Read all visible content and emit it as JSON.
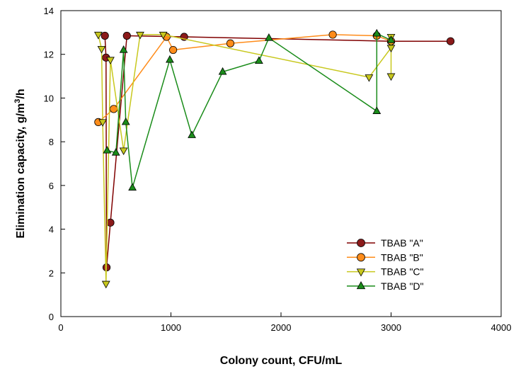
{
  "chart_data": {
    "type": "line",
    "title": "",
    "xlabel": "Colony count, CFU/mL",
    "ylabel_main": "Elimination capacity, g/m",
    "ylabel_sup": "3",
    "ylabel_tail": "/h",
    "xlim": [
      0,
      4000
    ],
    "ylim": [
      0,
      14
    ],
    "x_ticks": [
      "0",
      "1000",
      "2000",
      "3000",
      "4000"
    ],
    "y_ticks": [
      "0",
      "2",
      "4",
      "6",
      "8",
      "10",
      "12",
      "14"
    ],
    "legend_position": "lower-right",
    "grid": false,
    "series": [
      {
        "name": "TBAB \"A\"",
        "marker": "circle",
        "line_color": "#800000",
        "fill_color": "#8b1a1a",
        "points": [
          [
            400,
            12.85
          ],
          [
            410,
            11.85
          ],
          [
            415,
            2.25
          ],
          [
            450,
            4.3
          ],
          [
            600,
            12.85
          ],
          [
            1120,
            12.8
          ],
          [
            3000,
            12.6
          ],
          [
            3540,
            12.6
          ]
        ]
      },
      {
        "name": "TBAB \"B\"",
        "marker": "circle",
        "line_color": "#ff8c1a",
        "fill_color": "#ff8c1a",
        "points": [
          [
            340,
            8.9
          ],
          [
            480,
            9.5
          ],
          [
            960,
            12.8
          ],
          [
            1020,
            12.2
          ],
          [
            1540,
            12.5
          ],
          [
            2470,
            12.9
          ],
          [
            2870,
            12.85
          ],
          [
            3000,
            12.6
          ]
        ]
      },
      {
        "name": "TBAB \"C\"",
        "marker": "triangle-down",
        "line_color": "#c8c81e",
        "fill_color": "#c8c81e",
        "points": [
          [
            340,
            12.9
          ],
          [
            370,
            12.25
          ],
          [
            380,
            8.9
          ],
          [
            410,
            1.5
          ],
          [
            450,
            11.75
          ],
          [
            570,
            7.6
          ],
          [
            720,
            12.9
          ],
          [
            930,
            12.9
          ],
          [
            2800,
            10.95
          ],
          [
            3000,
            12.3
          ],
          [
            3000,
            12.8
          ],
          [
            3000,
            11.0
          ]
        ]
      },
      {
        "name": "TBAB \"D\"",
        "marker": "triangle-up",
        "line_color": "#1a8c1a",
        "fill_color": "#1a8c1a",
        "points": [
          [
            420,
            7.6
          ],
          [
            500,
            7.5
          ],
          [
            570,
            12.2
          ],
          [
            590,
            8.9
          ],
          [
            650,
            5.9
          ],
          [
            990,
            11.75
          ],
          [
            1190,
            8.3
          ],
          [
            1470,
            11.2
          ],
          [
            1800,
            11.7
          ],
          [
            1890,
            12.75
          ],
          [
            2870,
            9.4
          ],
          [
            2870,
            12.95
          ],
          [
            3000,
            12.65
          ]
        ]
      }
    ]
  }
}
